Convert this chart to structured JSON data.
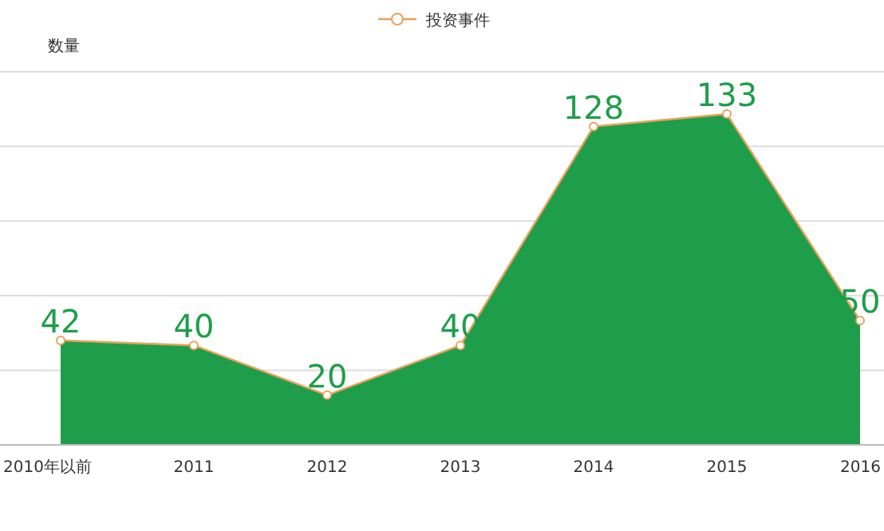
{
  "chart_data": {
    "type": "area",
    "ylabel": "数量",
    "categories": [
      "2010年以前",
      "2011",
      "2012",
      "2013",
      "2014",
      "2015",
      "2016"
    ],
    "series": [
      {
        "name": "投资事件",
        "color": "#1e9e4a",
        "values": [
          42,
          40,
          20,
          40,
          128,
          133,
          50
        ]
      }
    ],
    "ylim": [
      0,
      150
    ],
    "yticks": [
      {
        "value": 0,
        "label": null
      },
      {
        "value": 30,
        "label": null
      },
      {
        "value": 60,
        "label": null
      },
      {
        "value": 90,
        "label": null
      },
      {
        "value": 120,
        "label": null
      },
      {
        "value": 150,
        "label": null
      }
    ],
    "tick_labels": "x",
    "grid": "y",
    "legend": "top",
    "marker": "circle",
    "data_labels": true
  }
}
